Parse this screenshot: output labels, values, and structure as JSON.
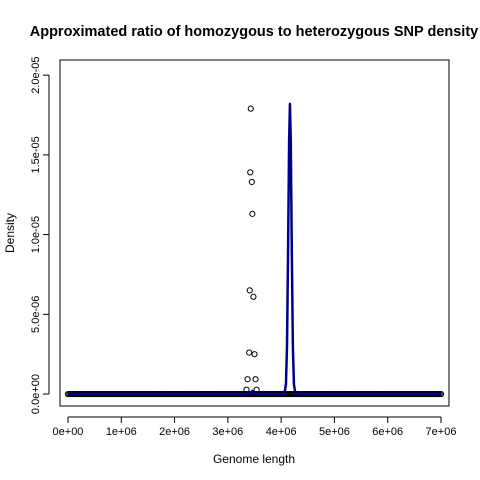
{
  "chart_data": {
    "type": "scatter",
    "title": "Approximated ratio of homozygous to heterozygous SNP density",
    "xlabel": "Genome length",
    "ylabel": "Density",
    "xlim": [
      -150000,
      7150000
    ],
    "ylim": [
      -7.5e-07,
      2.095e-05
    ],
    "x_ticks": [
      0,
      1000000,
      2000000,
      3000000,
      4000000,
      5000000,
      6000000,
      7000000
    ],
    "x_tick_labels": [
      "0e+00",
      "1e+06",
      "2e+06",
      "3e+06",
      "4e+06",
      "5e+06",
      "6e+06",
      "7e+06"
    ],
    "y_ticks": [
      0,
      5e-06,
      1e-05,
      1.5e-05,
      2e-05
    ],
    "y_tick_labels": [
      "0.0e+00",
      "5.0e-06",
      "1.0e-05",
      "1.5e-05",
      "2.0e-05"
    ],
    "grid": false,
    "legend": "none",
    "series": [
      {
        "kind": "points",
        "color": "#000000",
        "points": [
          {
            "x": 3430000,
            "y": 1.79e-05
          },
          {
            "x": 3420000,
            "y": 1.39e-05
          },
          {
            "x": 3450000,
            "y": 1.33e-05
          },
          {
            "x": 3460000,
            "y": 1.13e-05
          },
          {
            "x": 3410000,
            "y": 6.5e-06
          },
          {
            "x": 3480000,
            "y": 6.1e-06
          },
          {
            "x": 3400000,
            "y": 2.6e-06
          },
          {
            "x": 3500000,
            "y": 2.5e-06
          },
          {
            "x": 3370000,
            "y": 9.3e-07
          },
          {
            "x": 3520000,
            "y": 9.3e-07
          },
          {
            "x": 3350000,
            "y": 2.7e-07
          },
          {
            "x": 3540000,
            "y": 2.7e-07
          }
        ],
        "baseline_points": {
          "x_start": 0,
          "x_end": 7000000,
          "step": 25000,
          "y": 0
        }
      },
      {
        "kind": "line",
        "color": "#00008b",
        "points": [
          {
            "x": 0,
            "y": 0
          },
          {
            "x": 3380000,
            "y": 0
          },
          {
            "x": 3430000,
            "y": 5e-08
          },
          {
            "x": 3460000,
            "y": 2e-07
          },
          {
            "x": 3490000,
            "y": 5e-08
          },
          {
            "x": 3540000,
            "y": 0
          },
          {
            "x": 4060000,
            "y": 0
          },
          {
            "x": 4090000,
            "y": 6e-07
          },
          {
            "x": 4110000,
            "y": 3e-06
          },
          {
            "x": 4130000,
            "y": 9e-06
          },
          {
            "x": 4150000,
            "y": 1.6e-05
          },
          {
            "x": 4165000,
            "y": 1.82e-05
          },
          {
            "x": 4180000,
            "y": 1.6e-05
          },
          {
            "x": 4200000,
            "y": 9e-06
          },
          {
            "x": 4220000,
            "y": 3e-06
          },
          {
            "x": 4240000,
            "y": 6e-07
          },
          {
            "x": 4270000,
            "y": 0
          },
          {
            "x": 7000000,
            "y": 0
          }
        ]
      }
    ]
  }
}
